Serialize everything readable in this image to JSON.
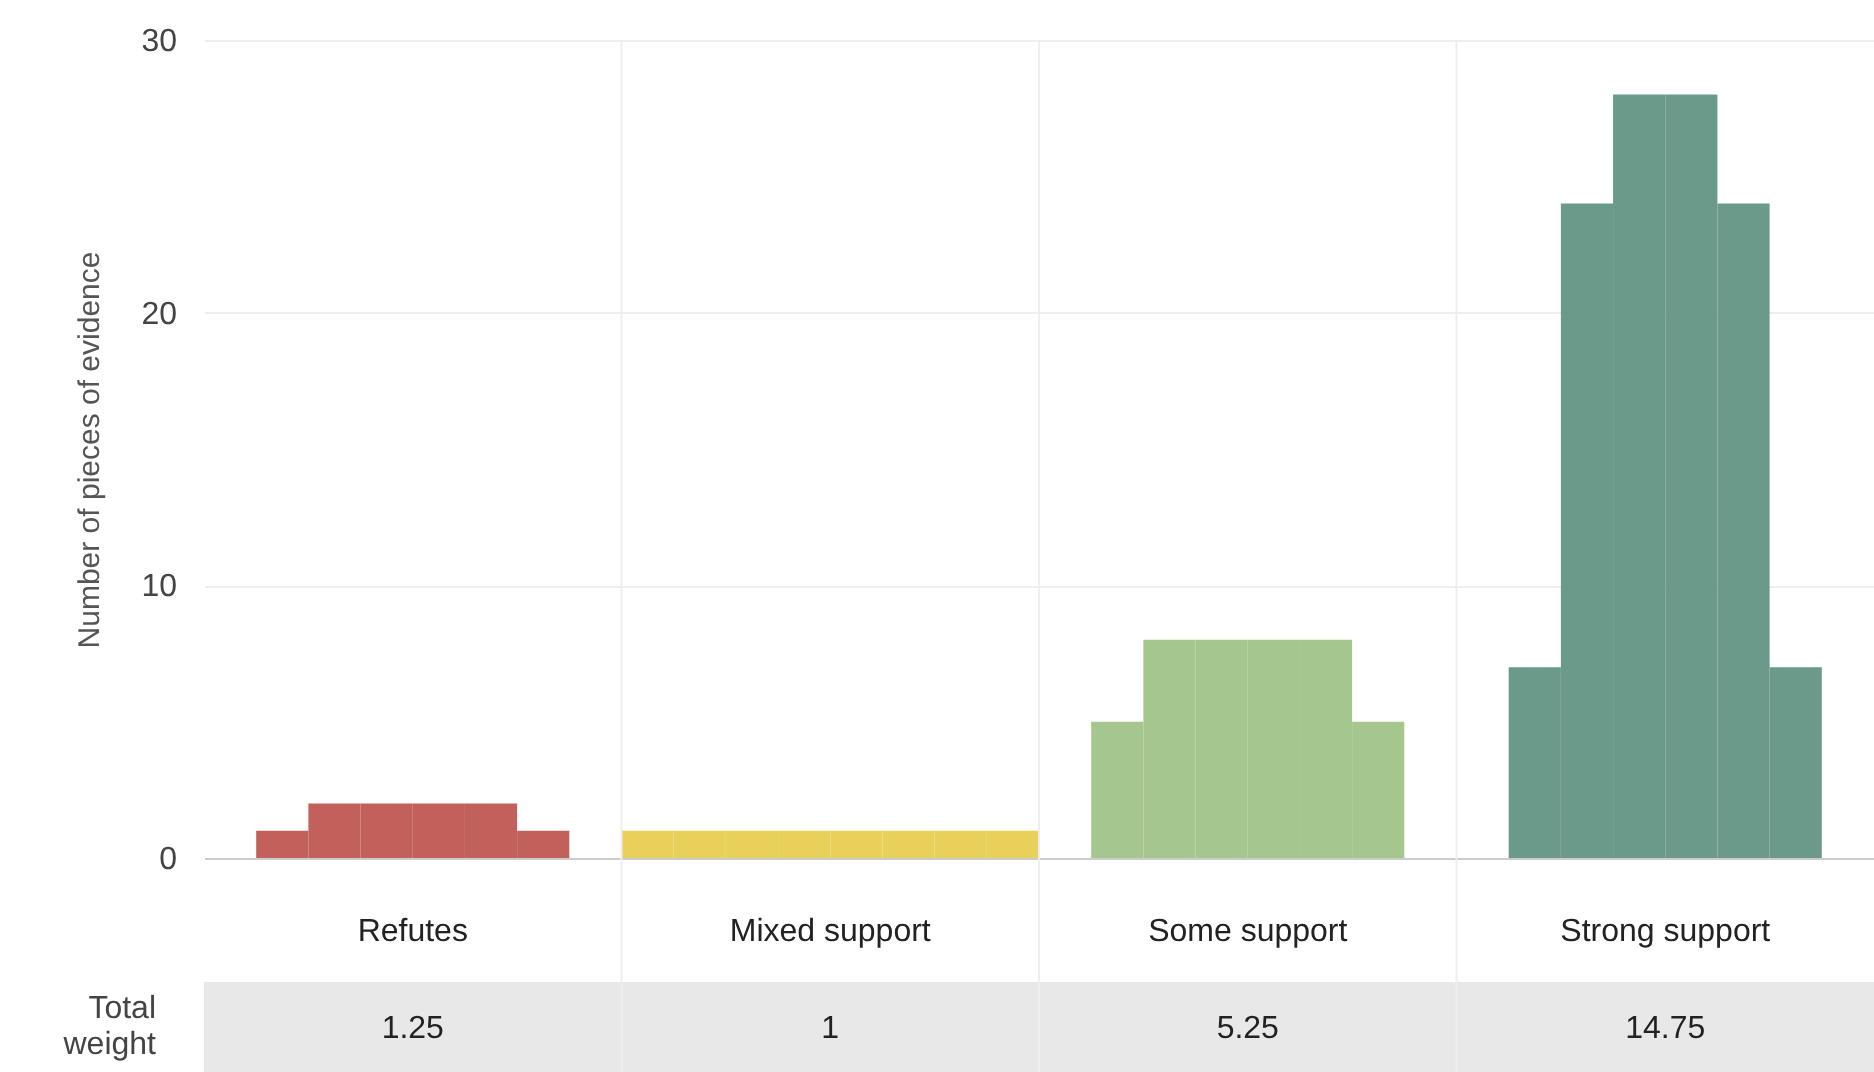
{
  "chart_data": {
    "type": "bar",
    "ylabel": "Number of pieces of evidence",
    "categories": [
      "Refutes",
      "Mixed support",
      "Some support",
      "Strong support"
    ],
    "series": [
      {
        "colors": [
          "#c2605c",
          "#e8d05a",
          "#a5c78e",
          "#6b9a8b"
        ],
        "values": [
          0,
          1,
          0,
          0
        ]
      },
      {
        "colors": [
          "#c2605c",
          "#e8d05a",
          "#a5c78e",
          "#6b9a8b"
        ],
        "values": [
          1,
          1,
          5,
          7
        ]
      },
      {
        "colors": [
          "#c2605c",
          "#e8d05a",
          "#a5c78e",
          "#6b9a8b"
        ],
        "values": [
          2,
          1,
          8,
          24
        ]
      },
      {
        "colors": [
          "#c2605c",
          "#e8d05a",
          "#a5c78e",
          "#6b9a8b"
        ],
        "values": [
          2,
          1,
          8,
          28
        ]
      },
      {
        "colors": [
          "#c2605c",
          "#e8d05a",
          "#a5c78e",
          "#6b9a8b"
        ],
        "values": [
          2,
          1,
          8,
          28
        ]
      },
      {
        "colors": [
          "#c2605c",
          "#e8d05a",
          "#a5c78e",
          "#6b9a8b"
        ],
        "values": [
          2,
          1,
          8,
          24
        ]
      },
      {
        "colors": [
          "#c2605c",
          "#e8d05a",
          "#a5c78e",
          "#6b9a8b"
        ],
        "values": [
          1,
          1,
          5,
          7
        ]
      },
      {
        "colors": [
          "#c2605c",
          "#e8d05a",
          "#a5c78e",
          "#6b9a8b"
        ],
        "values": [
          0,
          1,
          0,
          0
        ]
      }
    ],
    "ylim": [
      0,
      30
    ],
    "yticks": [
      0,
      10,
      20,
      30
    ],
    "grid": "y",
    "annotations": [
      "Total weight",
      "1.25",
      "1",
      "5.25",
      "14.75"
    ]
  }
}
